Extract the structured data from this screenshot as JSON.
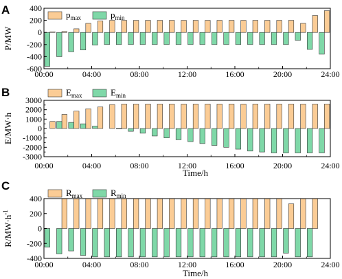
{
  "colors": {
    "max": "#fbcc95",
    "min": "#7fd8a8",
    "edge": "#333333"
  },
  "chart_data": [
    {
      "type": "bar",
      "panel": "A",
      "ylabel": "P/MW",
      "xlabel": "",
      "ylim": [
        -600,
        400
      ],
      "yticks": [
        400,
        200,
        0,
        -200,
        -400,
        -600
      ],
      "xtick_labels": [
        "00:00",
        "04:00",
        "08:00",
        "12:00",
        "16:00",
        "20:00",
        "24:00"
      ],
      "x": [
        0,
        1,
        2,
        3,
        4,
        5,
        6,
        7,
        8,
        9,
        10,
        11,
        12,
        13,
        14,
        15,
        16,
        17,
        18,
        19,
        20,
        21,
        22,
        23
      ],
      "series": [
        {
          "name": "p",
          "sub": "max",
          "role": "max",
          "values": [
            10,
            15,
            60,
            150,
            190,
            200,
            200,
            200,
            200,
            200,
            200,
            200,
            200,
            200,
            200,
            200,
            200,
            200,
            200,
            200,
            200,
            150,
            280,
            360
          ]
        },
        {
          "name": "p",
          "sub": "min",
          "role": "min",
          "values": [
            -560,
            -400,
            -320,
            -290,
            -210,
            -200,
            -200,
            -200,
            -200,
            -200,
            -200,
            -200,
            -200,
            -200,
            -200,
            -200,
            -200,
            -200,
            -200,
            -200,
            -200,
            -130,
            -280,
            -360
          ]
        }
      ]
    },
    {
      "type": "bar",
      "panel": "B",
      "ylabel": "E/MW·h",
      "xlabel": "Time/h",
      "ylim": [
        -3000,
        3000
      ],
      "yticks": [
        3000,
        2000,
        1000,
        0,
        -1000,
        -2000,
        -3000
      ],
      "extra_ticks": [
        2500,
        1500,
        500,
        -500,
        -1500,
        -2500
      ],
      "xtick_labels": [
        "00:00",
        "04:00",
        "08:00",
        "12:00",
        "16:00",
        "20:00",
        "24:00"
      ],
      "x": [
        0,
        1,
        2,
        3,
        4,
        5,
        6,
        7,
        8,
        9,
        10,
        11,
        12,
        13,
        14,
        15,
        16,
        17,
        18,
        19,
        20,
        21,
        22,
        23
      ],
      "series": [
        {
          "name": "E",
          "sub": "max",
          "role": "max",
          "values": [
            750,
            1500,
            1850,
            2100,
            2300,
            2550,
            2600,
            2600,
            2600,
            2600,
            2600,
            2600,
            2600,
            2600,
            2600,
            2600,
            2600,
            2600,
            2600,
            2600,
            2600,
            2600,
            2600,
            2600
          ]
        },
        {
          "name": "E",
          "sub": "min",
          "role": "min",
          "values": [
            0,
            750,
            650,
            500,
            250,
            0,
            -50,
            -300,
            -500,
            -800,
            -1000,
            -1200,
            -1400,
            -1600,
            -1800,
            -2000,
            -2200,
            -2400,
            -2500,
            -2600,
            -2600,
            -2600,
            -2600,
            -2600
          ]
        }
      ]
    },
    {
      "type": "bar",
      "panel": "C",
      "ylabel": "R/MW·h",
      "ylabel_sup": "-1",
      "xlabel": "Time/h",
      "ylim": [
        -400,
        400
      ],
      "yticks": [
        400,
        200,
        0,
        -200,
        -400
      ],
      "xtick_labels": [
        "00:00",
        "04:00",
        "08:00",
        "12:00",
        "16:00",
        "20:00",
        "24:00"
      ],
      "x": [
        0,
        1,
        2,
        3,
        4,
        5,
        6,
        7,
        8,
        9,
        10,
        11,
        12,
        13,
        14,
        15,
        16,
        17,
        18,
        19,
        20,
        21,
        22,
        23
      ],
      "series": [
        {
          "name": "R",
          "sub": "max",
          "role": "max",
          "values": [
            0,
            400,
            400,
            400,
            400,
            400,
            400,
            400,
            400,
            400,
            400,
            400,
            400,
            400,
            400,
            400,
            400,
            400,
            400,
            400,
            330,
            400,
            400,
            0
          ]
        },
        {
          "name": "R",
          "sub": "min",
          "role": "min",
          "values": [
            -250,
            -340,
            -300,
            -360,
            -380,
            -380,
            -380,
            -380,
            -380,
            -380,
            -380,
            -380,
            -380,
            -380,
            -380,
            -380,
            -380,
            -380,
            -380,
            -380,
            -330,
            -380,
            -380,
            0
          ]
        }
      ]
    }
  ]
}
